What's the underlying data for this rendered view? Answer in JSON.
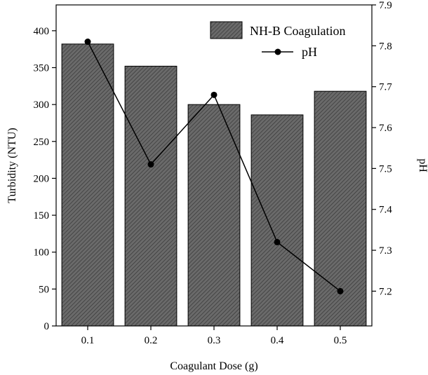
{
  "chart_data": {
    "type": "bar",
    "title": "",
    "xlabel": "Coagulant Dose (g)",
    "ylabel": "Turbidity (NTU)",
    "y2label": "pH",
    "categories": [
      "0.1",
      "0.2",
      "0.3",
      "0.4",
      "0.5"
    ],
    "ylim": [
      0,
      435
    ],
    "y2lim": [
      7.115,
      7.9
    ],
    "yticks": [
      0,
      50,
      100,
      150,
      200,
      250,
      300,
      350,
      400
    ],
    "y2ticks": [
      7.2,
      7.3,
      7.4,
      7.5,
      7.6,
      7.7,
      7.8,
      7.9
    ],
    "series": [
      {
        "name": "NH-B Coagulation",
        "type": "bar",
        "axis": "left",
        "color": "#666666",
        "pattern": "diagonal-hatch",
        "values": [
          382,
          352,
          300,
          286,
          318
        ]
      },
      {
        "name": "pH",
        "type": "line",
        "axis": "right",
        "color": "#000000",
        "marker": "circle",
        "values": [
          7.81,
          7.51,
          7.68,
          7.32,
          7.2
        ]
      }
    ],
    "legend_position": "top-right",
    "grid": false
  }
}
